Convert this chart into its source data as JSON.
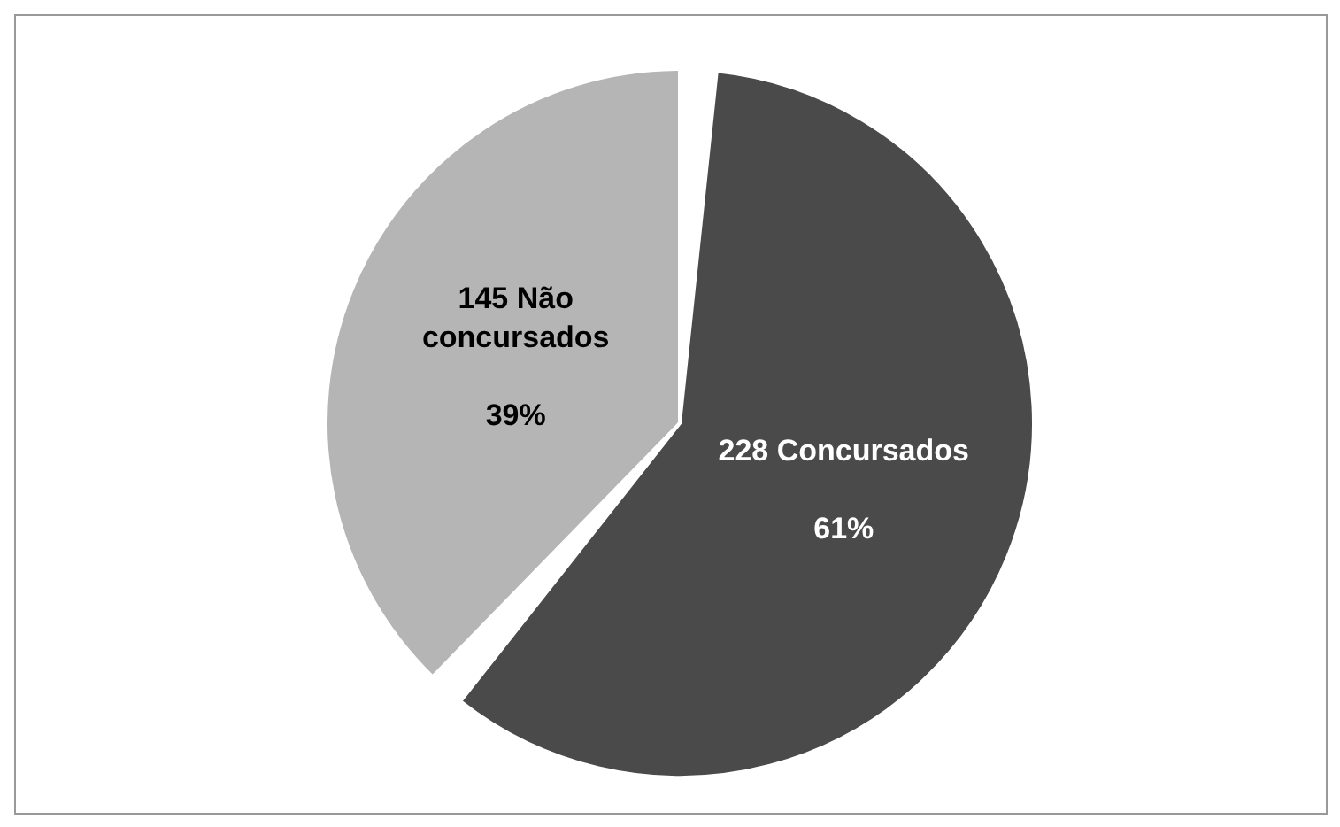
{
  "chart_data": {
    "type": "pie",
    "categories": [
      "145 Não concursados",
      "228 Concursados"
    ],
    "values": [
      39,
      61
    ],
    "value_labels": [
      "39%",
      "61%"
    ],
    "colors": [
      "#b5b5b5",
      "#4a4a4a"
    ],
    "legend": false
  }
}
